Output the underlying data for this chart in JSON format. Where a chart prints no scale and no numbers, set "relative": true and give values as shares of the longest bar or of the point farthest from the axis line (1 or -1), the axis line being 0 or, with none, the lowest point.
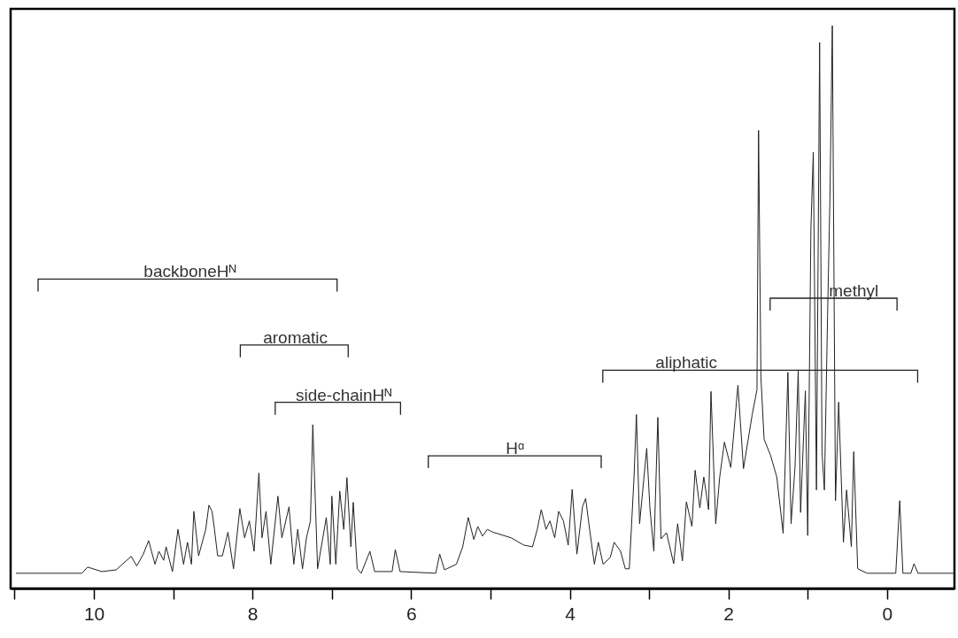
{
  "chart_data": {
    "type": "line",
    "relative": true,
    "color": "#222222",
    "x": [
      10.98,
      10.15,
      10.08,
      9.9,
      9.72,
      9.53,
      9.46,
      9.38,
      9.31,
      9.23,
      9.18,
      9.12,
      9.09,
      9.01,
      8.94,
      8.87,
      8.82,
      8.77,
      8.74,
      8.68,
      8.59,
      8.55,
      8.51,
      8.48,
      8.44,
      8.38,
      8.31,
      8.24,
      8.16,
      8.1,
      8.04,
      7.98,
      7.92,
      7.88,
      7.83,
      7.77,
      7.68,
      7.63,
      7.54,
      7.48,
      7.43,
      7.37,
      7.32,
      7.27,
      7.24,
      7.18,
      7.07,
      7.02,
      7.0,
      6.95,
      6.9,
      6.85,
      6.81,
      6.76,
      6.73,
      6.68,
      6.63,
      6.52,
      6.46,
      6.24,
      6.2,
      6.14,
      5.69,
      5.64,
      5.58,
      5.43,
      5.35,
      5.28,
      5.21,
      5.16,
      5.1,
      5.04,
      4.97,
      4.74,
      4.58,
      4.47,
      4.41,
      4.36,
      4.3,
      4.25,
      4.19,
      4.14,
      4.08,
      4.02,
      3.97,
      3.91,
      3.84,
      3.8,
      3.75,
      3.69,
      3.64,
      3.58,
      3.49,
      3.44,
      3.36,
      3.3,
      3.25,
      3.19,
      3.16,
      3.12,
      3.03,
      2.99,
      2.94,
      2.89,
      2.85,
      2.78,
      2.69,
      2.64,
      2.58,
      2.53,
      2.46,
      2.42,
      2.36,
      2.31,
      2.25,
      2.22,
      2.16,
      2.11,
      2.05,
      1.97,
      1.88,
      1.81,
      1.7,
      1.64,
      1.62,
      1.59,
      1.55,
      1.47,
      1.39,
      1.31,
      1.25,
      1.21,
      1.16,
      1.12,
      1.09,
      1.03,
      1.0,
      0.96,
      0.93,
      0.89,
      0.85,
      0.82,
      0.79,
      0.75,
      0.72,
      0.69,
      0.65,
      0.61,
      0.55,
      0.51,
      0.45,
      0.42,
      0.37,
      0.25,
      -0.11,
      -0.16,
      -0.2,
      -0.3,
      -0.34,
      -0.39,
      -0.85
    ],
    "values": [
      0.027,
      0.027,
      0.038,
      0.03,
      0.033,
      0.057,
      0.04,
      0.06,
      0.085,
      0.043,
      0.066,
      0.05,
      0.074,
      0.03,
      0.105,
      0.043,
      0.082,
      0.043,
      0.137,
      0.058,
      0.105,
      0.148,
      0.137,
      0.105,
      0.058,
      0.058,
      0.1,
      0.035,
      0.142,
      0.09,
      0.12,
      0.066,
      0.205,
      0.09,
      0.137,
      0.043,
      0.164,
      0.09,
      0.145,
      0.043,
      0.105,
      0.035,
      0.09,
      0.12,
      0.291,
      0.035,
      0.126,
      0.043,
      0.164,
      0.043,
      0.173,
      0.105,
      0.197,
      0.074,
      0.153,
      0.035,
      0.027,
      0.066,
      0.03,
      0.03,
      0.069,
      0.03,
      0.027,
      0.061,
      0.033,
      0.043,
      0.074,
      0.126,
      0.087,
      0.11,
      0.093,
      0.105,
      0.1,
      0.09,
      0.077,
      0.074,
      0.105,
      0.14,
      0.105,
      0.12,
      0.09,
      0.137,
      0.12,
      0.077,
      0.176,
      0.061,
      0.145,
      0.16,
      0.105,
      0.043,
      0.082,
      0.043,
      0.055,
      0.082,
      0.066,
      0.035,
      0.035,
      0.198,
      0.309,
      0.115,
      0.249,
      0.143,
      0.066,
      0.304,
      0.088,
      0.099,
      0.044,
      0.115,
      0.049,
      0.154,
      0.11,
      0.21,
      0.143,
      0.198,
      0.14,
      0.35,
      0.115,
      0.198,
      0.26,
      0.215,
      0.361,
      0.213,
      0.309,
      0.353,
      0.814,
      0.375,
      0.265,
      0.237,
      0.198,
      0.098,
      0.384,
      0.115,
      0.216,
      0.387,
      0.135,
      0.351,
      0.094,
      0.639,
      0.775,
      0.175,
      0.97,
      0.243,
      0.175,
      0.485,
      0.694,
      1.0,
      0.156,
      0.331,
      0.082,
      0.175,
      0.074,
      0.243,
      0.035,
      0.027,
      0.027,
      0.156,
      0.027,
      0.027,
      0.044,
      0.027,
      0.027
    ],
    "xlim": [
      11.05,
      -0.85
    ],
    "xticks": [
      {
        "value": 11,
        "label": null
      },
      10,
      {
        "value": 9,
        "label": null
      },
      8,
      {
        "value": 7,
        "label": null
      },
      6,
      {
        "value": 5,
        "label": null
      },
      4,
      {
        "value": 3,
        "label": null
      },
      2,
      {
        "value": 1,
        "label": null
      },
      0
    ],
    "annotations": [
      "backboneHᴺ",
      "aromatic",
      "side-chainHᴺ",
      "Hᵅ",
      "aliphatic",
      "methyl"
    ]
  }
}
